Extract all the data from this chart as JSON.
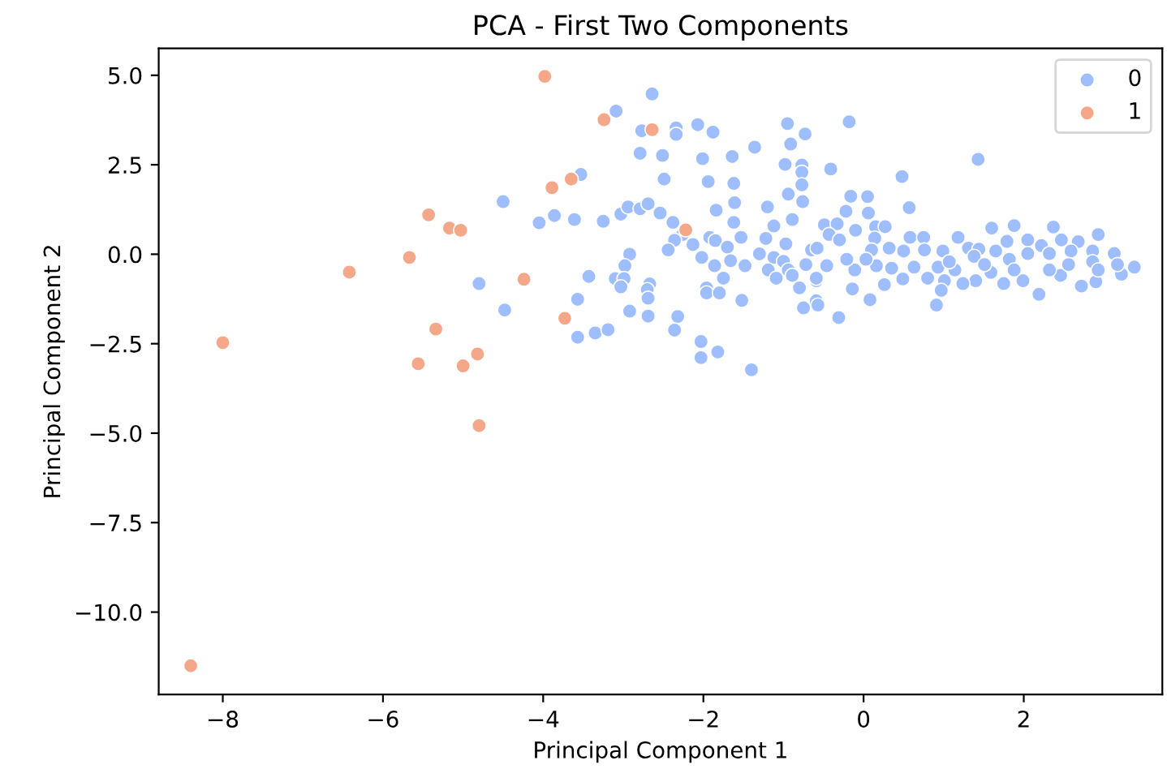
{
  "chart_data": {
    "type": "scatter",
    "title": "PCA - First Two Components",
    "xlabel": "Principal Component 1",
    "ylabel": "Principal Component 2",
    "xlim": [
      -8.8,
      3.73
    ],
    "ylim": [
      -12.3,
      5.75
    ],
    "xticks": [
      {
        "value": -8,
        "label": "−8"
      },
      {
        "value": -6,
        "label": "−6"
      },
      {
        "value": -4,
        "label": "−4"
      },
      {
        "value": -2,
        "label": "−2"
      },
      {
        "value": 0,
        "label": "0"
      },
      {
        "value": 2,
        "label": "2"
      }
    ],
    "yticks": [
      {
        "value": 5,
        "label": "5.0"
      },
      {
        "value": 2.5,
        "label": "2.5"
      },
      {
        "value": 0,
        "label": "0.0"
      },
      {
        "value": -2.5,
        "label": "−2.5"
      },
      {
        "value": -5,
        "label": "−5.0"
      },
      {
        "value": -7.5,
        "label": "−7.5"
      },
      {
        "value": -10,
        "label": "−10.0"
      }
    ],
    "grid": false,
    "legend": "top right",
    "marker": "circle",
    "series": [
      {
        "name": "0",
        "color": "#9ebeff",
        "x": [
          -4.8,
          -2.64,
          -3.09,
          -2.77,
          -2.34,
          -2.34,
          -2.07,
          -1.88,
          -2.79,
          -2.51,
          -2.01,
          -1.64,
          -1.36,
          -0.95,
          -0.73,
          -0.91,
          -0.98,
          -0.77,
          -0.77,
          -0.77,
          -0.94,
          -0.76,
          -2.49,
          -1.94,
          -1.62,
          -3.53,
          -4.5,
          -4.05,
          -3.86,
          -3.61,
          -3.25,
          -3.03,
          -2.94,
          -2.79,
          -2.69,
          -2.54,
          -2.38,
          -1.84,
          -1.61,
          -1.2,
          -1.62,
          -1.12,
          -0.89,
          -2.26,
          -2.36,
          -2.13,
          -2.44,
          -1.92,
          -1.85,
          -2.02,
          -1.86,
          -1.7,
          -1.66,
          -1.53,
          -1.48,
          -1.75,
          -1.22,
          -1.3,
          -1.12,
          -0.97,
          -1.0,
          -1.19,
          -1.09,
          -0.94,
          -0.89,
          -0.72,
          -0.65,
          -0.59,
          -0.8,
          -0.75,
          -0.59,
          -1.52,
          -1.96,
          -1.96,
          -1.8,
          -2.92,
          -2.98,
          -3.1,
          -2.99,
          -3.03,
          -3.43,
          -2.67,
          -2.7,
          -2.69,
          -3.57,
          -4.48,
          -2.92,
          -2.69,
          -2.32,
          -2.36,
          -3.57,
          -3.35,
          -3.19,
          -2.03,
          -2.03,
          -1.82,
          -1.4,
          -0.18,
          -0.41,
          0.48,
          1.43,
          0.57,
          -0.16,
          0.05,
          -0.22,
          0.06,
          -0.49,
          -0.33,
          -0.43,
          -0.1,
          0.15,
          0.27,
          -0.58,
          -0.3,
          0.14,
          0.58,
          0.75,
          1.18,
          1.6,
          1.88,
          2.37,
          2.93,
          2.68,
          2.47,
          1.79,
          2.05,
          2.22,
          0.1,
          0.32,
          0.5,
          0.76,
          0.99,
          1.31,
          1.44,
          1.65,
          2.05,
          2.32,
          2.59,
          2.86,
          3.13,
          3.38,
          3.22,
          3.17,
          2.9,
          2.72,
          2.46,
          2.56,
          2.32,
          2.19,
          1.99,
          1.75,
          1.59,
          1.4,
          1.24,
          1.14,
          1.01,
          0.97,
          0.91,
          0.93,
          0.8,
          0.63,
          0.49,
          0.35,
          0.26,
          0.16,
          0.03,
          0.08,
          -0.14,
          -0.31,
          -0.46,
          -0.59,
          -0.57,
          -0.11,
          -0.21,
          1.38,
          1.07,
          1.51,
          1.82,
          1.88,
          2.86,
          2.93
        ],
        "values": [
          -0.82,
          4.48,
          4.0,
          3.45,
          3.53,
          3.35,
          3.62,
          3.41,
          2.82,
          2.76,
          2.67,
          2.73,
          2.99,
          3.65,
          3.36,
          3.08,
          2.51,
          2.49,
          2.29,
          1.94,
          1.68,
          1.47,
          2.1,
          2.03,
          1.98,
          2.23,
          1.47,
          0.88,
          1.08,
          0.97,
          0.92,
          1.12,
          1.32,
          1.27,
          1.41,
          1.15,
          0.89,
          1.23,
          1.44,
          1.32,
          0.89,
          0.79,
          0.97,
          0.55,
          0.39,
          0.27,
          0.12,
          0.47,
          0.38,
          -0.09,
          -0.32,
          0.2,
          -0.18,
          0.47,
          -0.32,
          -0.67,
          0.44,
          0.01,
          -0.09,
          0.29,
          -0.2,
          -0.44,
          -0.67,
          -0.44,
          -0.59,
          -0.29,
          0.12,
          -0.74,
          -0.94,
          -1.5,
          -1.3,
          -1.29,
          -0.94,
          -1.08,
          -1.08,
          0.0,
          -0.32,
          -0.68,
          -0.68,
          -0.91,
          -0.62,
          -0.83,
          -0.99,
          -1.23,
          -1.26,
          -1.56,
          -1.59,
          -1.73,
          -1.74,
          -2.12,
          -2.32,
          -2.2,
          -2.11,
          -2.44,
          -2.89,
          -2.73,
          -3.23,
          3.7,
          2.38,
          2.17,
          2.65,
          1.3,
          1.62,
          1.61,
          1.2,
          1.15,
          0.82,
          0.85,
          0.55,
          0.67,
          0.77,
          0.77,
          0.17,
          0.4,
          0.45,
          0.47,
          0.47,
          0.47,
          0.73,
          0.8,
          0.76,
          0.55,
          0.35,
          0.4,
          0.36,
          0.4,
          0.24,
          0.12,
          0.17,
          0.09,
          0.12,
          0.09,
          0.17,
          0.14,
          0.09,
          0.02,
          0.02,
          0.09,
          0.09,
          0.02,
          -0.36,
          -0.56,
          -0.29,
          -0.77,
          -0.89,
          -0.59,
          -0.29,
          -0.44,
          -1.12,
          -0.74,
          -0.82,
          -0.51,
          -0.74,
          -0.82,
          -0.44,
          -0.74,
          -1.01,
          -1.42,
          -0.36,
          -0.67,
          -0.36,
          -0.69,
          -0.39,
          -0.85,
          -0.32,
          -0.14,
          -1.27,
          -0.97,
          -1.77,
          -0.32,
          -0.67,
          -1.42,
          -0.44,
          -0.14,
          -0.06,
          -0.21,
          -0.29,
          -0.14,
          -0.44,
          -0.21,
          -0.44
        ]
      },
      {
        "name": "1",
        "color": "#f5a889",
        "x": [
          -8.4,
          -5.43,
          -5.17,
          -5.03,
          -5.67,
          -6.42,
          -5.34,
          -8.0,
          -5.56,
          -5.0,
          -4.82,
          -4.8,
          -3.98,
          -3.24,
          -2.64,
          -3.65,
          -3.89,
          -4.24,
          -3.73,
          -2.22
        ],
        "values": [
          -11.5,
          1.1,
          0.73,
          0.67,
          -0.09,
          -0.5,
          -2.09,
          -2.47,
          -3.06,
          -3.12,
          -2.79,
          -4.79,
          4.97,
          3.76,
          3.48,
          2.1,
          1.86,
          -0.7,
          -1.79,
          0.68
        ]
      }
    ]
  }
}
